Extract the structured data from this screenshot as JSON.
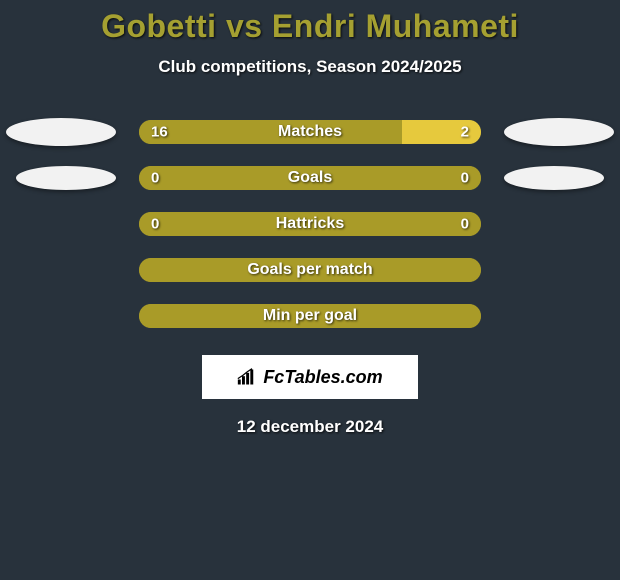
{
  "title": "Gobetti vs Endri Muhameti",
  "subtitle": "Club competitions, Season 2024/2025",
  "date": "12 december 2024",
  "logo_text": "FcTables.com",
  "colors": {
    "background": "#28323c",
    "title": "#a5a031",
    "bar_primary": "#a99b28",
    "bar_secondary": "#e6c93d",
    "bar_both": "#a99b28",
    "flag_left": "#f2f2f2",
    "flag_right": "#f2f2f2",
    "text": "#ffffff"
  },
  "rows": [
    {
      "label": "Matches",
      "left_value": "16",
      "right_value": "2",
      "left_num": 16,
      "right_num": 2,
      "left_width_pct": 77,
      "right_width_pct": 23,
      "left_color": "#a99b28",
      "right_color": "#e6c93d",
      "show_left_flag": true,
      "show_right_flag": true,
      "flag_variant": "big"
    },
    {
      "label": "Goals",
      "left_value": "0",
      "right_value": "0",
      "left_num": 0,
      "right_num": 0,
      "left_width_pct": 100,
      "right_width_pct": 0,
      "left_color": "#a99b28",
      "right_color": "#e6c93d",
      "show_left_flag": true,
      "show_right_flag": true,
      "flag_variant": "small"
    },
    {
      "label": "Hattricks",
      "left_value": "0",
      "right_value": "0",
      "left_num": 0,
      "right_num": 0,
      "left_width_pct": 100,
      "right_width_pct": 0,
      "left_color": "#a99b28",
      "right_color": "#e6c93d",
      "show_left_flag": false,
      "show_right_flag": false
    },
    {
      "label": "Goals per match",
      "left_value": "",
      "right_value": "",
      "left_num": 0,
      "right_num": 0,
      "left_width_pct": 100,
      "right_width_pct": 0,
      "left_color": "#a99b28",
      "right_color": "#e6c93d",
      "show_left_flag": false,
      "show_right_flag": false
    },
    {
      "label": "Min per goal",
      "left_value": "",
      "right_value": "",
      "left_num": 0,
      "right_num": 0,
      "left_width_pct": 100,
      "right_width_pct": 0,
      "left_color": "#a99b28",
      "right_color": "#e6c93d",
      "show_left_flag": false,
      "show_right_flag": false
    }
  ]
}
